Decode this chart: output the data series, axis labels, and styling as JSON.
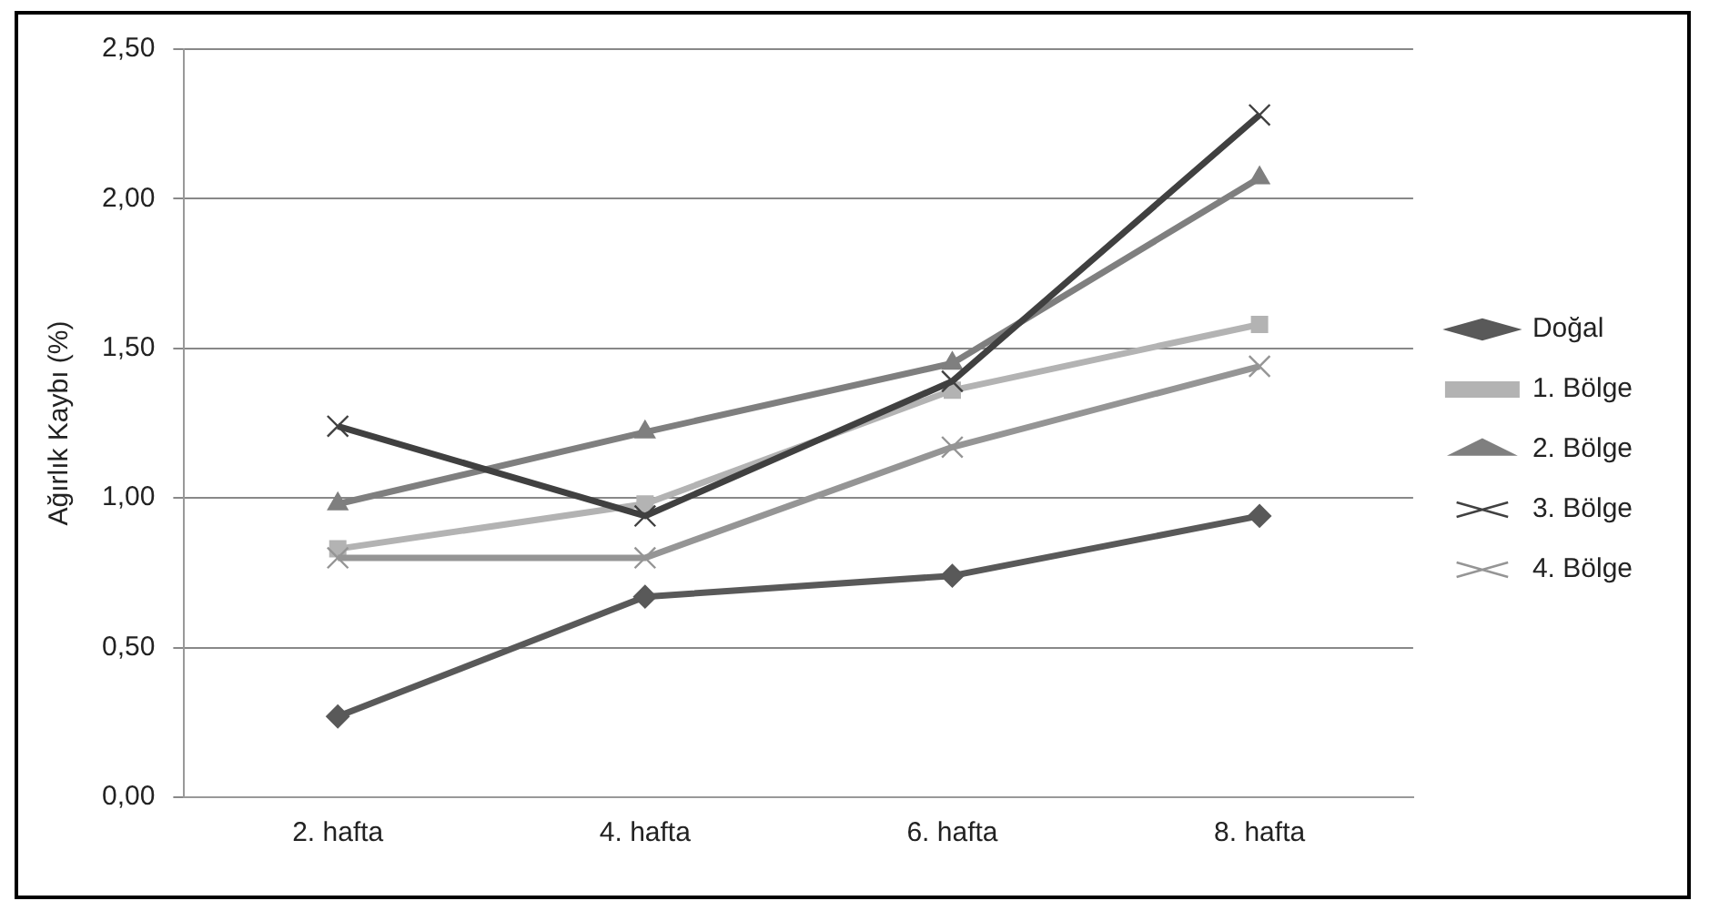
{
  "chart_data": {
    "type": "line",
    "ylabel": "Ağırlık Kaybı (%)",
    "categories": [
      "2. hafta",
      "4. hafta",
      "6. hafta",
      "8. hafta"
    ],
    "series": [
      {
        "name": "Doğal",
        "color": "#595959",
        "marker": "diamond",
        "values": [
          0.27,
          0.67,
          0.74,
          0.94
        ]
      },
      {
        "name": "1. Bölge",
        "color": "#b3b3b3",
        "marker": "square",
        "values": [
          0.83,
          0.98,
          1.36,
          1.58
        ]
      },
      {
        "name": "2. Bölge",
        "color": "#7f7f7f",
        "marker": "triangle",
        "values": [
          0.98,
          1.22,
          1.45,
          2.07
        ]
      },
      {
        "name": "3. Bölge",
        "color": "#404040",
        "marker": "cross",
        "values": [
          1.24,
          0.94,
          1.39,
          2.28
        ]
      },
      {
        "name": "4. Bölge",
        "color": "#959595",
        "marker": "cross",
        "values": [
          0.8,
          0.8,
          1.17,
          1.44
        ]
      }
    ],
    "ylim": [
      0,
      2.5
    ],
    "yticks": [
      {
        "value": 0,
        "label": "0,00"
      },
      {
        "value": 0.5,
        "label": "0,50"
      },
      {
        "value": 1,
        "label": "1,00"
      },
      {
        "value": 1.5,
        "label": "1,50"
      },
      {
        "value": 2,
        "label": "2,00"
      },
      {
        "value": 2.5,
        "label": "2,50"
      }
    ],
    "grid": "y",
    "legend": "right",
    "line_style": "solid"
  }
}
